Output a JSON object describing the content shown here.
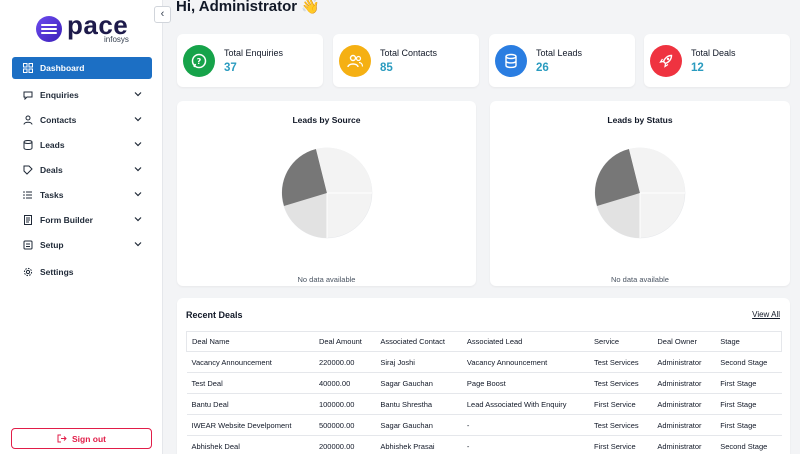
{
  "brand": {
    "name": "pace",
    "sub": "infosys"
  },
  "sidebar": {
    "items": [
      {
        "label": "Dashboard",
        "icon": "grid-icon",
        "active": true
      },
      {
        "label": "Enquiries",
        "icon": "chat-icon"
      },
      {
        "label": "Contacts",
        "icon": "user-icon"
      },
      {
        "label": "Leads",
        "icon": "database-icon"
      },
      {
        "label": "Deals",
        "icon": "tag-icon"
      },
      {
        "label": "Tasks",
        "icon": "list-icon"
      },
      {
        "label": "Form Builder",
        "icon": "form-icon"
      },
      {
        "label": "Setup",
        "icon": "setup-icon"
      },
      {
        "label": "Settings",
        "icon": "gear-icon"
      }
    ],
    "signout_label": "Sign out"
  },
  "header": {
    "greeting": "Hi, Administrator 👋"
  },
  "stats": [
    {
      "label": "Total Enquiries",
      "value": "37",
      "color": "#16a34a"
    },
    {
      "label": "Total Contacts",
      "value": "85",
      "color": "#f5b013"
    },
    {
      "label": "Total Leads",
      "value": "26",
      "color": "#2a7de1"
    },
    {
      "label": "Total Deals",
      "value": "12",
      "color": "#ef3340"
    }
  ],
  "charts": [
    {
      "title": "Leads by Source",
      "empty_text": "No data available"
    },
    {
      "title": "Leads by Status",
      "empty_text": "No data available"
    }
  ],
  "deals": {
    "title": "Recent Deals",
    "view_all": "View All",
    "columns": [
      "Deal Name",
      "Deal Amount",
      "Associated Contact",
      "Associated Lead",
      "Service",
      "Deal Owner",
      "Stage"
    ],
    "rows": [
      [
        "Vacancy Announcement",
        "220000.00",
        "Siraj Joshi",
        "Vacancy Announcement",
        "Test Services",
        "Administrator",
        "Second Stage"
      ],
      [
        "Test Deal",
        "40000.00",
        "Sagar Gauchan",
        "Page Boost",
        "Test Services",
        "Administrator",
        "First Stage"
      ],
      [
        "Bantu Deal",
        "100000.00",
        "Bantu Shrestha",
        "Lead Associated With Enquiry",
        "First Service",
        "Administrator",
        "First Stage"
      ],
      [
        "IWEAR Website Develpoment",
        "500000.00",
        "Sagar Gauchan",
        "-",
        "Test Services",
        "Administrator",
        "First Stage"
      ],
      [
        "Abhishek Deal",
        "200000.00",
        "Abhishek Prasai",
        "-",
        "First Service",
        "Administrator",
        "Second Stage"
      ]
    ]
  }
}
